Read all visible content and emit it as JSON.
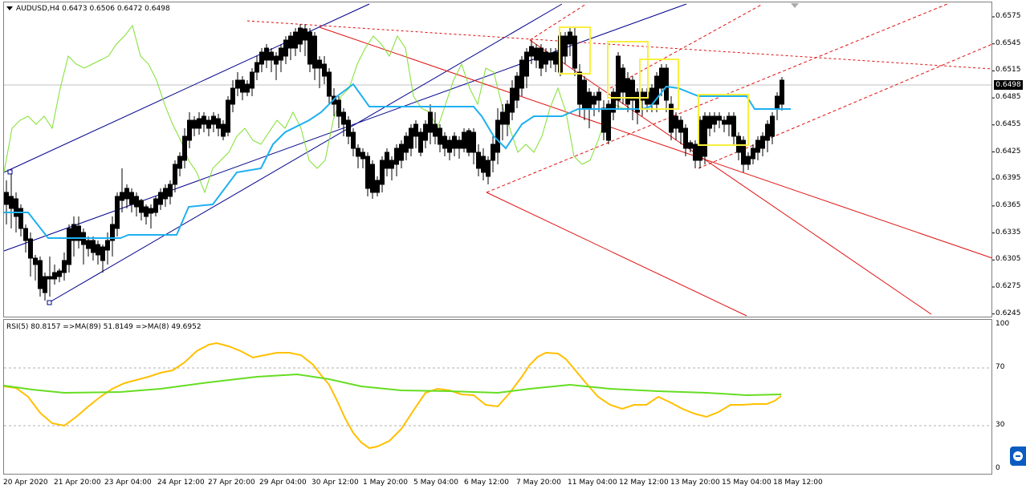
{
  "header": {
    "symbol_line": "AUDUSD,H4  0.6473 0.6506 0.6472 0.6498"
  },
  "rsi_header": {
    "text": "RSI(5) 80.8157  =>MA(89) 51.8149  =>MA(8) 49.6952"
  },
  "current_price_label": "0.6498",
  "price_scale": [
    "0.6575",
    "0.6545",
    "0.6515",
    "0.6485",
    "0.6455",
    "0.6425",
    "0.6395",
    "0.6365",
    "0.6335",
    "0.6305",
    "0.6275",
    "0.6245"
  ],
  "rsi_scale": [
    "100",
    "70",
    "30",
    "0"
  ],
  "time_scale": [
    "20 Apr 2020",
    "21 Apr 20:00",
    "23 Apr 04:00",
    "24 Apr 12:00",
    "27 Apr 20:00",
    "29 Apr 04:00",
    "30 Apr 12:00",
    "1 May 20:00",
    "5 May 04:00",
    "6 May 12:00",
    "7 May 20:00",
    "11 May 04:00",
    "12 May 12:00",
    "13 May 20:00",
    "15 May 04:00",
    "18 May 12:00"
  ],
  "colors": {
    "bull_candle": "#ffffff",
    "bear_candle": "#000000",
    "blue_channel": "#00008b",
    "red_pitchfork": "#e01010",
    "cyan_line": "#1fb0f0",
    "green_line": "#7fe030",
    "yellow_box": "#f8f040",
    "rsi_line": "#ffc000",
    "rsi_ma": "#66dd22",
    "level_line": "#b0b0b0"
  },
  "icons": [
    "dropdown-triangle-icon",
    "scroll-arrow-icon",
    "teamviewer-icon"
  ]
}
